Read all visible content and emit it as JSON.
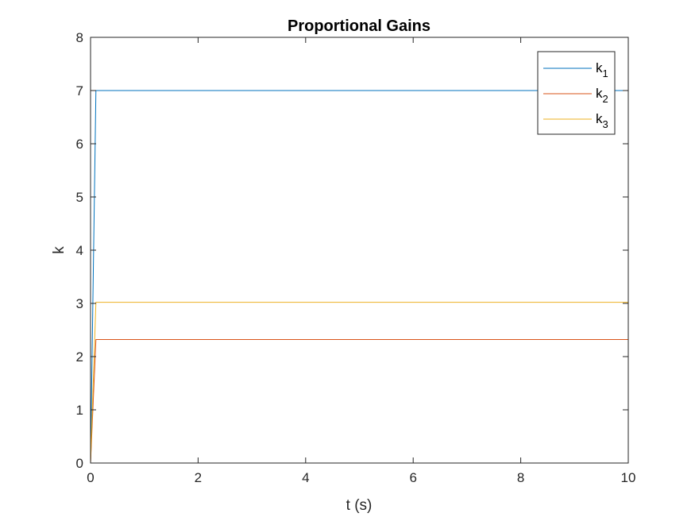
{
  "chart_data": {
    "type": "line",
    "title": "Proportional Gains",
    "xlabel": "t (s)",
    "ylabel": "k",
    "xlim": [
      0,
      10
    ],
    "ylim": [
      0,
      8
    ],
    "xticks": [
      0,
      2,
      4,
      6,
      8,
      10
    ],
    "yticks": [
      0,
      1,
      2,
      3,
      4,
      5,
      6,
      7,
      8
    ],
    "grid": false,
    "legend_position": "top-right",
    "series": [
      {
        "name": "k",
        "subscript": "1",
        "color": "#0072BD",
        "x": [
          0,
          0.1,
          10
        ],
        "y": [
          0,
          7.0,
          7.0
        ]
      },
      {
        "name": "k",
        "subscript": "2",
        "color": "#D95319",
        "x": [
          0,
          0.1,
          10
        ],
        "y": [
          0,
          2.32,
          2.32
        ]
      },
      {
        "name": "k",
        "subscript": "3",
        "color": "#EDB120",
        "x": [
          0,
          0.1,
          10
        ],
        "y": [
          0,
          3.02,
          3.02
        ]
      }
    ]
  }
}
